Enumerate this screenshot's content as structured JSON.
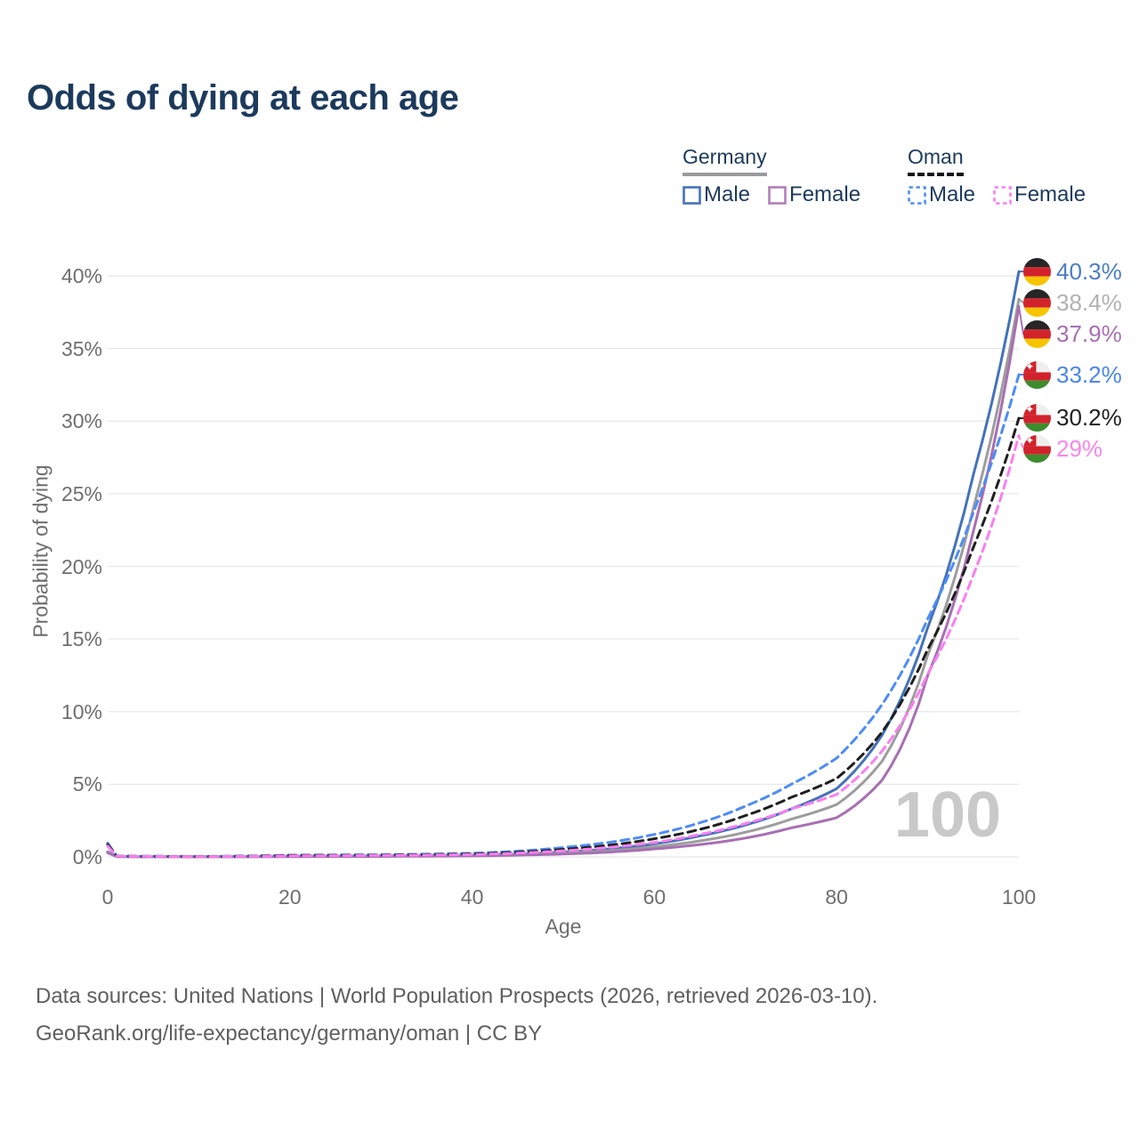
{
  "title": "Odds of dying at each age",
  "watermark": "100",
  "legend": {
    "groups": [
      {
        "label": "Germany",
        "line_style": "solid",
        "underline_color": "#9b9b9b",
        "items": [
          {
            "label": "Male",
            "color": "#4472b9"
          },
          {
            "label": "Female",
            "color": "#b27fba"
          }
        ]
      },
      {
        "label": "Oman",
        "line_style": "dashed",
        "underline_color": "#151515",
        "items": [
          {
            "label": "Male",
            "color": "#4d8cf6"
          },
          {
            "label": "Female",
            "color": "#fb7ef0"
          }
        ]
      }
    ]
  },
  "axes": {
    "y": {
      "label": "Probability of dying",
      "ticks": [
        "0%",
        "5%",
        "10%",
        "15%",
        "20%",
        "25%",
        "30%",
        "35%",
        "40%"
      ],
      "tick_values": [
        0,
        5,
        10,
        15,
        20,
        25,
        30,
        35,
        40
      ],
      "min": 0,
      "max": 40
    },
    "x": {
      "label": "Age",
      "ticks": [
        "0",
        "20",
        "40",
        "60",
        "80",
        "100"
      ],
      "tick_values": [
        0,
        20,
        40,
        60,
        80,
        100
      ],
      "min": 0,
      "max": 100
    }
  },
  "chart_data": {
    "type": "line",
    "title": "Odds of dying at each age",
    "xlabel": "Age",
    "ylabel": "Probability of dying",
    "xlim": [
      0,
      100
    ],
    "ylim": [
      0,
      40
    ],
    "grid": "horizontal",
    "x_ages": [
      0,
      1,
      10,
      20,
      30,
      40,
      45,
      50,
      55,
      60,
      65,
      70,
      75,
      80,
      85,
      90,
      95,
      100
    ],
    "series": [
      {
        "name": "Germany male",
        "country": "germany",
        "dashed": false,
        "color": "#4472b9",
        "end_value": 40.3,
        "end_label": "40.3%",
        "end_label_color": "#4a7ec4",
        "values": [
          0.35,
          0.03,
          0.01,
          0.05,
          0.07,
          0.12,
          0.2,
          0.33,
          0.55,
          0.9,
          1.45,
          2.2,
          3.3,
          4.7,
          8.4,
          15.8,
          26.3,
          40.3
        ]
      },
      {
        "name": "Germany total",
        "country": "germany",
        "dashed": false,
        "color": "#9d9d9d",
        "end_value": 38.4,
        "end_label": "38.4%",
        "end_label_color": "#b2b2b2",
        "values": [
          0.3,
          0.027,
          0.009,
          0.035,
          0.05,
          0.09,
          0.15,
          0.26,
          0.43,
          0.7,
          1.1,
          1.7,
          2.6,
          3.6,
          6.6,
          13.9,
          24.0,
          38.4
        ]
      },
      {
        "name": "Germany female",
        "country": "germany",
        "dashed": false,
        "color": "#a76fb3",
        "end_value": 37.9,
        "end_label": "37.9%",
        "end_label_color": "#a76fb3",
        "values": [
          0.28,
          0.023,
          0.008,
          0.02,
          0.035,
          0.07,
          0.12,
          0.2,
          0.33,
          0.55,
          0.85,
          1.3,
          2.0,
          2.7,
          5.3,
          12.5,
          22.4,
          37.9
        ]
      },
      {
        "name": "Oman male",
        "country": "oman",
        "dashed": true,
        "color": "#4d8cf6",
        "end_value": 33.2,
        "end_label": "33.2%",
        "end_label_color": "#4a86ea",
        "values": [
          0.95,
          0.06,
          0.03,
          0.12,
          0.15,
          0.25,
          0.4,
          0.65,
          1.0,
          1.55,
          2.35,
          3.5,
          5.0,
          6.8,
          10.5,
          16.4,
          23.7,
          33.2
        ]
      },
      {
        "name": "Oman total",
        "country": "oman",
        "dashed": true,
        "color": "#1f1f1f",
        "end_value": 30.2,
        "end_label": "30.2%",
        "end_label_color": "#222222",
        "values": [
          0.85,
          0.05,
          0.025,
          0.1,
          0.12,
          0.2,
          0.32,
          0.52,
          0.8,
          1.25,
          1.9,
          2.85,
          4.1,
          5.4,
          8.6,
          14.3,
          21.3,
          30.2
        ]
      },
      {
        "name": "Oman female",
        "country": "oman",
        "dashed": true,
        "color": "#fb7ef0",
        "end_value": 29,
        "end_label": "29%",
        "end_label_color": "#fc85ec",
        "values": [
          0.75,
          0.045,
          0.02,
          0.07,
          0.1,
          0.16,
          0.26,
          0.42,
          0.65,
          1.0,
          1.55,
          2.3,
          3.3,
          4.3,
          7.3,
          12.6,
          19.4,
          29.0
        ]
      }
    ]
  },
  "colors": {
    "title": "#1c3a5c",
    "axis_text": "#6e6e6e",
    "gridline": "#e8e8e8",
    "watermark": "#c9c9c9",
    "footer": "#5f5f5f",
    "germany_flag": [
      "#262626",
      "#d2232c",
      "#f6c500"
    ],
    "oman_flag": [
      "#efefef",
      "#d2232c",
      "#3d8d2e"
    ]
  },
  "footer": {
    "line1": "Data sources: United Nations | World Population Prospects (2026, retrieved 2026-03-10).",
    "line2": "GeoRank.org/life-expectancy/germany/oman | CC BY"
  }
}
